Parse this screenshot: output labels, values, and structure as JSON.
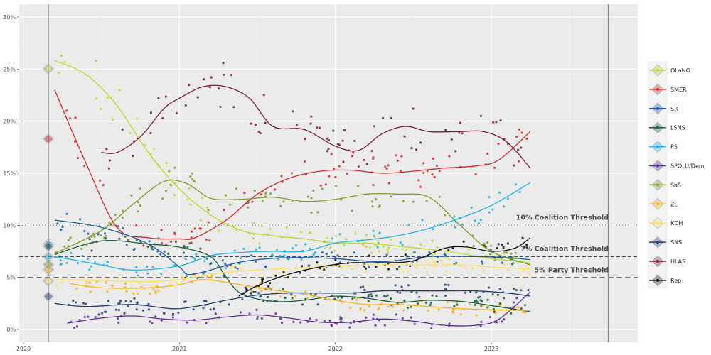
{
  "chart_data": {
    "type": "scatter",
    "title": "",
    "xlabel": "",
    "ylabel": "",
    "xlim": [
      2020.0,
      2023.85
    ],
    "ylim": [
      -0.012,
      0.31
    ],
    "x_ticks": [
      {
        "value": 2020,
        "label": "2020"
      },
      {
        "value": 2021,
        "label": "2021"
      },
      {
        "value": 2022,
        "label": "2022"
      },
      {
        "value": 2023,
        "label": "2023"
      }
    ],
    "y_ticks": [
      {
        "value": 0.0,
        "label": "0%"
      },
      {
        "value": 0.05,
        "label": "5%"
      },
      {
        "value": 0.1,
        "label": "10%"
      },
      {
        "value": 0.15,
        "label": "15%"
      },
      {
        "value": 0.2,
        "label": "20%"
      },
      {
        "value": 0.25,
        "label": "25%"
      },
      {
        "value": 0.3,
        "label": "30%"
      }
    ],
    "grid": true,
    "legend_position": "right",
    "vertical_markers": [
      {
        "x": 2020.16,
        "name": "election-2020"
      },
      {
        "x": 2023.75,
        "name": "election-2023"
      }
    ],
    "thresholds": [
      {
        "y": 0.1,
        "label": "10% Coalition Threshold",
        "style": "dotted"
      },
      {
        "y": 0.07,
        "label": "7% Coalition Threshold",
        "style": "dashed-fine"
      },
      {
        "y": 0.05,
        "label": "5% Party Threshold",
        "style": "dashed-wide"
      }
    ],
    "series": [
      {
        "name": "OLaNO",
        "color": "#c5d62e",
        "election_result": 0.2502,
        "trend": [
          [
            2020.2,
            0.258
          ],
          [
            2020.4,
            0.245
          ],
          [
            2020.6,
            0.215
          ],
          [
            2020.8,
            0.17
          ],
          [
            2021.0,
            0.135
          ],
          [
            2021.2,
            0.11
          ],
          [
            2021.4,
            0.095
          ],
          [
            2021.6,
            0.09
          ],
          [
            2021.8,
            0.087
          ],
          [
            2022.0,
            0.083
          ],
          [
            2022.2,
            0.083
          ],
          [
            2022.4,
            0.08
          ],
          [
            2022.6,
            0.077
          ],
          [
            2022.8,
            0.073
          ],
          [
            2023.0,
            0.068
          ],
          [
            2023.2,
            0.065
          ],
          [
            2023.25,
            0.063
          ]
        ]
      },
      {
        "name": "SMER",
        "color": "#d42a2a",
        "election_result": 0.1829,
        "trend": [
          [
            2020.2,
            0.23
          ],
          [
            2020.4,
            0.16
          ],
          [
            2020.6,
            0.098
          ],
          [
            2020.8,
            0.088
          ],
          [
            2021.0,
            0.087
          ],
          [
            2021.1,
            0.088
          ],
          [
            2021.3,
            0.105
          ],
          [
            2021.5,
            0.13
          ],
          [
            2021.7,
            0.145
          ],
          [
            2021.9,
            0.152
          ],
          [
            2022.1,
            0.153
          ],
          [
            2022.3,
            0.15
          ],
          [
            2022.5,
            0.152
          ],
          [
            2022.7,
            0.155
          ],
          [
            2022.9,
            0.157
          ],
          [
            2023.05,
            0.163
          ],
          [
            2023.25,
            0.19
          ]
        ]
      },
      {
        "name": "SR",
        "color": "#1f5ca8",
        "election_result": 0.0817,
        "trend": [
          [
            2020.2,
            0.105
          ],
          [
            2020.5,
            0.098
          ],
          [
            2020.8,
            0.082
          ],
          [
            2021.0,
            0.06
          ],
          [
            2021.05,
            0.053
          ],
          [
            2021.15,
            0.055
          ],
          [
            2021.4,
            0.065
          ],
          [
            2021.7,
            0.069
          ],
          [
            2022.0,
            0.068
          ],
          [
            2022.3,
            0.065
          ],
          [
            2022.6,
            0.07
          ],
          [
            2022.9,
            0.07
          ],
          [
            2023.1,
            0.069
          ],
          [
            2023.25,
            0.067
          ]
        ]
      },
      {
        "name": "LSNS",
        "color": "#1c5e3a",
        "election_result": 0.0797,
        "trend": [
          [
            2020.2,
            0.072
          ],
          [
            2020.5,
            0.085
          ],
          [
            2020.8,
            0.082
          ],
          [
            2021.0,
            0.079
          ],
          [
            2021.2,
            0.07
          ],
          [
            2021.3,
            0.05
          ],
          [
            2021.4,
            0.034
          ],
          [
            2021.6,
            0.027
          ],
          [
            2021.8,
            0.028
          ],
          [
            2022.0,
            0.032
          ],
          [
            2022.2,
            0.03
          ],
          [
            2022.4,
            0.026
          ],
          [
            2022.6,
            0.028
          ],
          [
            2022.8,
            0.027
          ],
          [
            2023.0,
            0.023
          ],
          [
            2023.25,
            0.017
          ]
        ]
      },
      {
        "name": "PS",
        "color": "#1fb3e8",
        "election_result": 0.0696,
        "trend": [
          [
            2020.2,
            0.07
          ],
          [
            2020.5,
            0.062
          ],
          [
            2020.7,
            0.057
          ],
          [
            2021.0,
            0.061
          ],
          [
            2021.2,
            0.071
          ],
          [
            2021.4,
            0.074
          ],
          [
            2021.6,
            0.075
          ],
          [
            2021.8,
            0.075
          ],
          [
            2022.0,
            0.083
          ],
          [
            2022.2,
            0.086
          ],
          [
            2022.4,
            0.09
          ],
          [
            2022.6,
            0.097
          ],
          [
            2022.8,
            0.107
          ],
          [
            2023.0,
            0.119
          ],
          [
            2023.25,
            0.141
          ]
        ]
      },
      {
        "name": "SPOLU/Dem",
        "color": "#5a2a9e",
        "election_result": 0.0,
        "trend": [
          [
            2020.28,
            0.006
          ],
          [
            2020.5,
            0.011
          ],
          [
            2020.7,
            0.013
          ],
          [
            2020.9,
            0.01
          ],
          [
            2021.1,
            0.009
          ],
          [
            2021.3,
            0.012
          ],
          [
            2021.5,
            0.014
          ],
          [
            2021.7,
            0.011
          ],
          [
            2021.9,
            0.007
          ],
          [
            2022.1,
            0.007
          ],
          [
            2022.3,
            0.01
          ],
          [
            2022.5,
            0.008
          ],
          [
            2022.7,
            0.004
          ],
          [
            2022.9,
            0.004
          ],
          [
            2023.05,
            0.01
          ],
          [
            2023.25,
            0.036
          ]
        ]
      },
      {
        "name": "SaS",
        "color": "#7f9e2a",
        "election_result": 0.0622,
        "trend": [
          [
            2020.2,
            0.073
          ],
          [
            2020.5,
            0.095
          ],
          [
            2020.7,
            0.12
          ],
          [
            2020.9,
            0.142
          ],
          [
            2021.05,
            0.14
          ],
          [
            2021.2,
            0.126
          ],
          [
            2021.4,
            0.125
          ],
          [
            2021.6,
            0.127
          ],
          [
            2021.8,
            0.123
          ],
          [
            2022.0,
            0.125
          ],
          [
            2022.2,
            0.13
          ],
          [
            2022.4,
            0.13
          ],
          [
            2022.6,
            0.127
          ],
          [
            2022.8,
            0.1
          ],
          [
            2023.0,
            0.075
          ],
          [
            2023.25,
            0.062
          ]
        ]
      },
      {
        "name": "ZL",
        "color": "#f7b21c",
        "election_result": 0.0575,
        "trend": [
          [
            2020.3,
            0.044
          ],
          [
            2020.5,
            0.04
          ],
          [
            2020.8,
            0.04
          ],
          [
            2021.0,
            0.043
          ],
          [
            2021.15,
            0.048
          ],
          [
            2021.35,
            0.044
          ],
          [
            2021.6,
            0.038
          ],
          [
            2021.8,
            0.034
          ],
          [
            2022.0,
            0.028
          ],
          [
            2022.2,
            0.024
          ],
          [
            2022.4,
            0.024
          ],
          [
            2022.6,
            0.022
          ],
          [
            2022.8,
            0.02
          ],
          [
            2023.0,
            0.019
          ],
          [
            2023.25,
            0.018
          ]
        ]
      },
      {
        "name": "KDH",
        "color": "#ffe066",
        "election_result": 0.0465,
        "trend": [
          [
            2020.2,
            0.048
          ],
          [
            2020.5,
            0.047
          ],
          [
            2020.8,
            0.046
          ],
          [
            2021.0,
            0.048
          ],
          [
            2021.3,
            0.055
          ],
          [
            2021.6,
            0.058
          ],
          [
            2021.9,
            0.06
          ],
          [
            2022.2,
            0.062
          ],
          [
            2022.5,
            0.062
          ],
          [
            2022.8,
            0.062
          ],
          [
            2023.0,
            0.06
          ],
          [
            2023.25,
            0.058
          ]
        ]
      },
      {
        "name": "SNS",
        "color": "#243f73",
        "election_result": 0.0316,
        "trend": [
          [
            2020.2,
            0.025
          ],
          [
            2020.4,
            0.022
          ],
          [
            2020.7,
            0.024
          ],
          [
            2020.95,
            0.02
          ],
          [
            2021.1,
            0.022
          ],
          [
            2021.3,
            0.028
          ],
          [
            2021.5,
            0.033
          ],
          [
            2021.7,
            0.035
          ],
          [
            2021.9,
            0.035
          ],
          [
            2022.1,
            0.035
          ],
          [
            2022.3,
            0.037
          ],
          [
            2022.5,
            0.037
          ],
          [
            2022.7,
            0.037
          ],
          [
            2022.9,
            0.037
          ],
          [
            2023.1,
            0.035
          ],
          [
            2023.25,
            0.032
          ]
        ]
      },
      {
        "name": "HLAS",
        "color": "#7a1a3a",
        "election_result": null,
        "trend": [
          [
            2020.5,
            0.17
          ],
          [
            2020.6,
            0.17
          ],
          [
            2020.75,
            0.185
          ],
          [
            2020.9,
            0.212
          ],
          [
            2021.0,
            0.222
          ],
          [
            2021.15,
            0.233
          ],
          [
            2021.3,
            0.233
          ],
          [
            2021.45,
            0.222
          ],
          [
            2021.6,
            0.195
          ],
          [
            2021.8,
            0.192
          ],
          [
            2022.0,
            0.176
          ],
          [
            2022.15,
            0.172
          ],
          [
            2022.3,
            0.188
          ],
          [
            2022.45,
            0.195
          ],
          [
            2022.6,
            0.19
          ],
          [
            2022.8,
            0.19
          ],
          [
            2022.95,
            0.19
          ],
          [
            2023.1,
            0.18
          ],
          [
            2023.25,
            0.155
          ]
        ]
      },
      {
        "name": "Rep",
        "color": "#111111",
        "election_result": null,
        "trend": [
          [
            2021.38,
            0.032
          ],
          [
            2021.5,
            0.042
          ],
          [
            2021.7,
            0.053
          ],
          [
            2021.9,
            0.06
          ],
          [
            2022.1,
            0.064
          ],
          [
            2022.3,
            0.064
          ],
          [
            2022.5,
            0.066
          ],
          [
            2022.7,
            0.078
          ],
          [
            2022.85,
            0.079
          ],
          [
            2023.0,
            0.075
          ],
          [
            2023.15,
            0.078
          ],
          [
            2023.25,
            0.088
          ]
        ]
      }
    ]
  }
}
